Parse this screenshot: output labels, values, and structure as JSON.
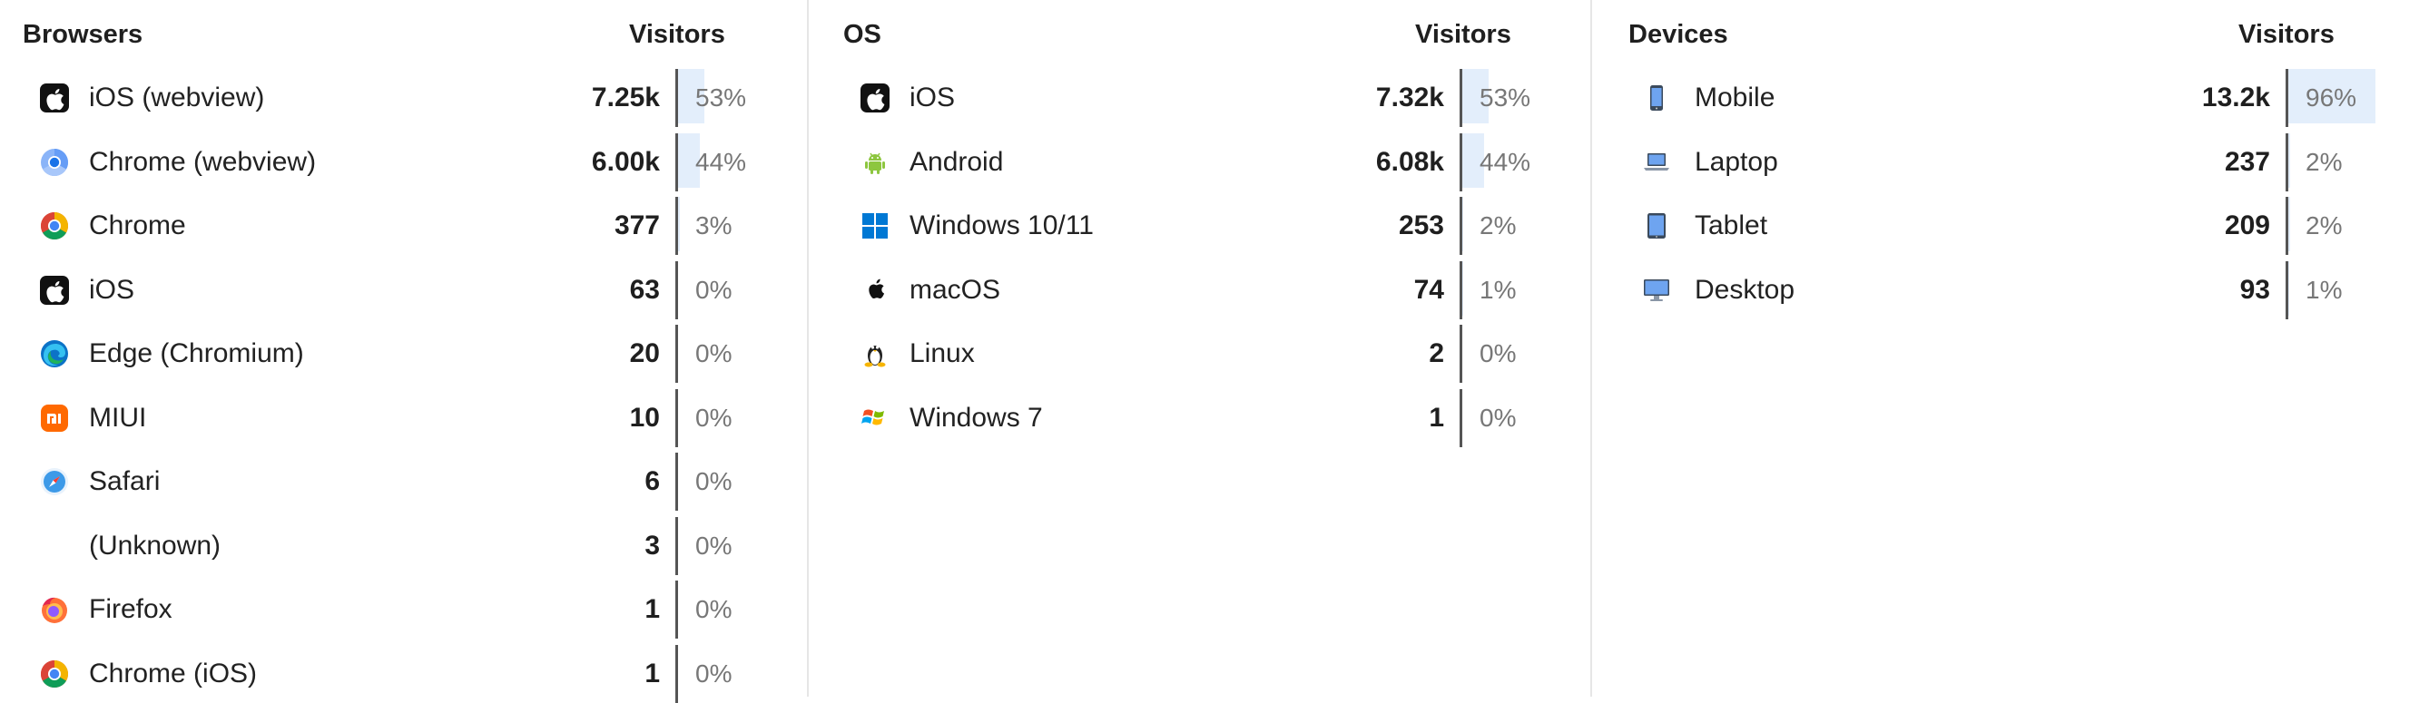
{
  "panels": [
    {
      "title": "Browsers",
      "metric": "Visitors",
      "rows": [
        {
          "label": "iOS (webview)",
          "count": "7.25k",
          "pct": "53%",
          "share": 0.53,
          "icon": "apple-icon"
        },
        {
          "label": "Chrome (webview)",
          "count": "6.00k",
          "pct": "44%",
          "share": 0.44,
          "icon": "chrome-webview-icon"
        },
        {
          "label": "Chrome",
          "count": "377",
          "pct": "3%",
          "share": 0.03,
          "icon": "chrome-icon"
        },
        {
          "label": "iOS",
          "count": "63",
          "pct": "0%",
          "share": 0.0,
          "icon": "apple-icon"
        },
        {
          "label": "Edge (Chromium)",
          "count": "20",
          "pct": "0%",
          "share": 0.0,
          "icon": "edge-icon"
        },
        {
          "label": "MIUI",
          "count": "10",
          "pct": "0%",
          "share": 0.0,
          "icon": "miui-icon"
        },
        {
          "label": "Safari",
          "count": "6",
          "pct": "0%",
          "share": 0.0,
          "icon": "safari-icon"
        },
        {
          "label": "(Unknown)",
          "count": "3",
          "pct": "0%",
          "share": 0.0,
          "icon": ""
        },
        {
          "label": "Firefox",
          "count": "1",
          "pct": "0%",
          "share": 0.0,
          "icon": "firefox-icon"
        },
        {
          "label": "Chrome (iOS)",
          "count": "1",
          "pct": "0%",
          "share": 0.0,
          "icon": "chrome-icon"
        }
      ]
    },
    {
      "title": "OS",
      "metric": "Visitors",
      "rows": [
        {
          "label": "iOS",
          "count": "7.32k",
          "pct": "53%",
          "share": 0.53,
          "icon": "apple-icon"
        },
        {
          "label": "Android",
          "count": "6.08k",
          "pct": "44%",
          "share": 0.44,
          "icon": "android-icon"
        },
        {
          "label": "Windows 10/11",
          "count": "253",
          "pct": "2%",
          "share": 0.02,
          "icon": "windows-icon"
        },
        {
          "label": "macOS",
          "count": "74",
          "pct": "1%",
          "share": 0.01,
          "icon": "macos-icon"
        },
        {
          "label": "Linux",
          "count": "2",
          "pct": "0%",
          "share": 0.0,
          "icon": "linux-icon"
        },
        {
          "label": "Windows 7",
          "count": "1",
          "pct": "0%",
          "share": 0.0,
          "icon": "windows7-icon"
        }
      ]
    },
    {
      "title": "Devices",
      "metric": "Visitors",
      "rows": [
        {
          "label": "Mobile",
          "count": "13.2k",
          "pct": "96%",
          "share": 0.96,
          "icon": "mobile-icon"
        },
        {
          "label": "Laptop",
          "count": "237",
          "pct": "2%",
          "share": 0.02,
          "icon": "laptop-icon"
        },
        {
          "label": "Tablet",
          "count": "209",
          "pct": "2%",
          "share": 0.02,
          "icon": "tablet-icon"
        },
        {
          "label": "Desktop",
          "count": "93",
          "pct": "1%",
          "share": 0.01,
          "icon": "desktop-icon"
        }
      ]
    }
  ],
  "colors": {
    "bar_fill": "#e3eefb",
    "divider": "#555555",
    "percent_text": "#777777"
  }
}
